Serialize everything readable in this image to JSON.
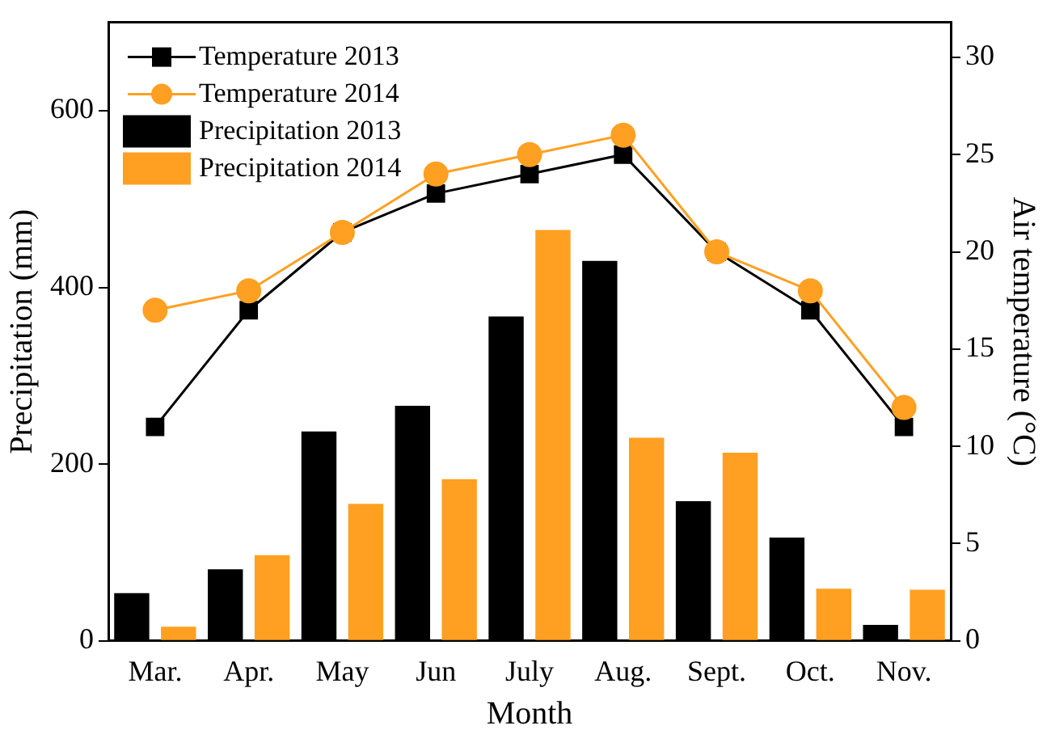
{
  "chart_data": {
    "type": "bar",
    "xlabel": "Month",
    "ylabel": "Precipitation (mm)",
    "y2label": "Air temperature (°C)",
    "categories": [
      "Mar.",
      "Apr.",
      "May",
      "Jun",
      "July",
      "Aug.",
      "Sept.",
      "Oct.",
      "Nov."
    ],
    "series": [
      {
        "name": "Temperature 2013",
        "type": "line",
        "axis": "y2",
        "color": "#000000",
        "marker": "square",
        "values": [
          11,
          17,
          21,
          23,
          24,
          25,
          20,
          17,
          11
        ]
      },
      {
        "name": "Temperature 2014",
        "type": "line",
        "axis": "y2",
        "color": "#ffa022",
        "marker": "circle",
        "values": [
          17,
          18,
          21,
          24,
          25,
          26,
          20,
          18,
          12
        ]
      },
      {
        "name": "Precipitation 2013",
        "color": "#000000",
        "values": [
          54,
          81,
          237,
          266,
          367,
          430,
          158,
          117,
          18
        ]
      },
      {
        "name": "Precipitation 2014",
        "color": "#ffa022",
        "values": [
          16,
          97,
          155,
          183,
          465,
          230,
          213,
          59,
          58
        ]
      }
    ],
    "ylim": [
      0,
      700
    ],
    "yticks": [
      0,
      200,
      400,
      600
    ],
    "y2lim": [
      0,
      31.8
    ],
    "y2ticks": [
      0,
      5,
      10,
      15,
      20,
      25,
      30
    ],
    "grid": false,
    "legend": "top left"
  }
}
